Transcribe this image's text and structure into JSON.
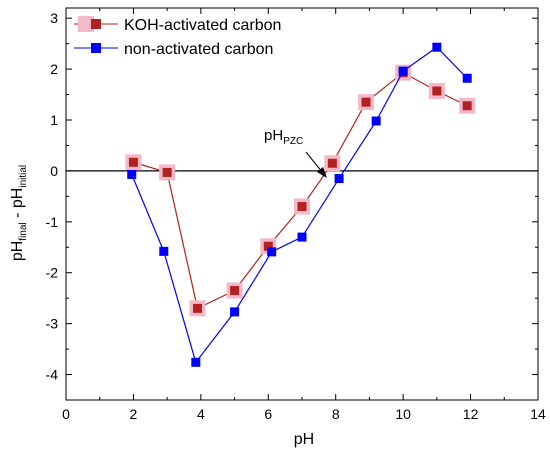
{
  "chart_data": {
    "type": "line",
    "xlabel": "pH",
    "ylabel": {
      "main": "pH",
      "sub1": "final",
      "sep": " - pH",
      "sub2": "initial"
    },
    "xlim": [
      0,
      14
    ],
    "ylim": [
      -4.5,
      3.2
    ],
    "xticks": [
      0,
      2,
      4,
      6,
      8,
      10,
      12,
      14
    ],
    "yticks": [
      -4,
      -3,
      -2,
      -1,
      0,
      1,
      2,
      3
    ],
    "grid": false,
    "legend_position": "top-left",
    "zero_line": 0,
    "series": [
      {
        "name": "KOH-activated carbon",
        "color": "#b22222",
        "marker": "square",
        "x": [
          2.0,
          3.0,
          3.9,
          5.0,
          6.0,
          7.0,
          7.9,
          8.9,
          10.0,
          11.0,
          11.9
        ],
        "y": [
          0.17,
          -0.03,
          -2.7,
          -2.35,
          -1.48,
          -0.7,
          0.15,
          1.35,
          1.93,
          1.57,
          1.28
        ]
      },
      {
        "name": "non-activated carbon",
        "color": "#0000ff",
        "marker": "square",
        "x": [
          1.95,
          2.9,
          3.85,
          5.0,
          6.1,
          7.0,
          8.1,
          9.2,
          10.0,
          11.0,
          11.9
        ],
        "y": [
          -0.07,
          -1.58,
          -3.76,
          -2.77,
          -1.59,
          -1.3,
          -0.15,
          0.98,
          1.96,
          2.43,
          1.82
        ]
      }
    ],
    "annotations": [
      {
        "text_main": "pH",
        "text_sub": "PZC",
        "x": 7.8,
        "y": 0.0
      }
    ]
  }
}
